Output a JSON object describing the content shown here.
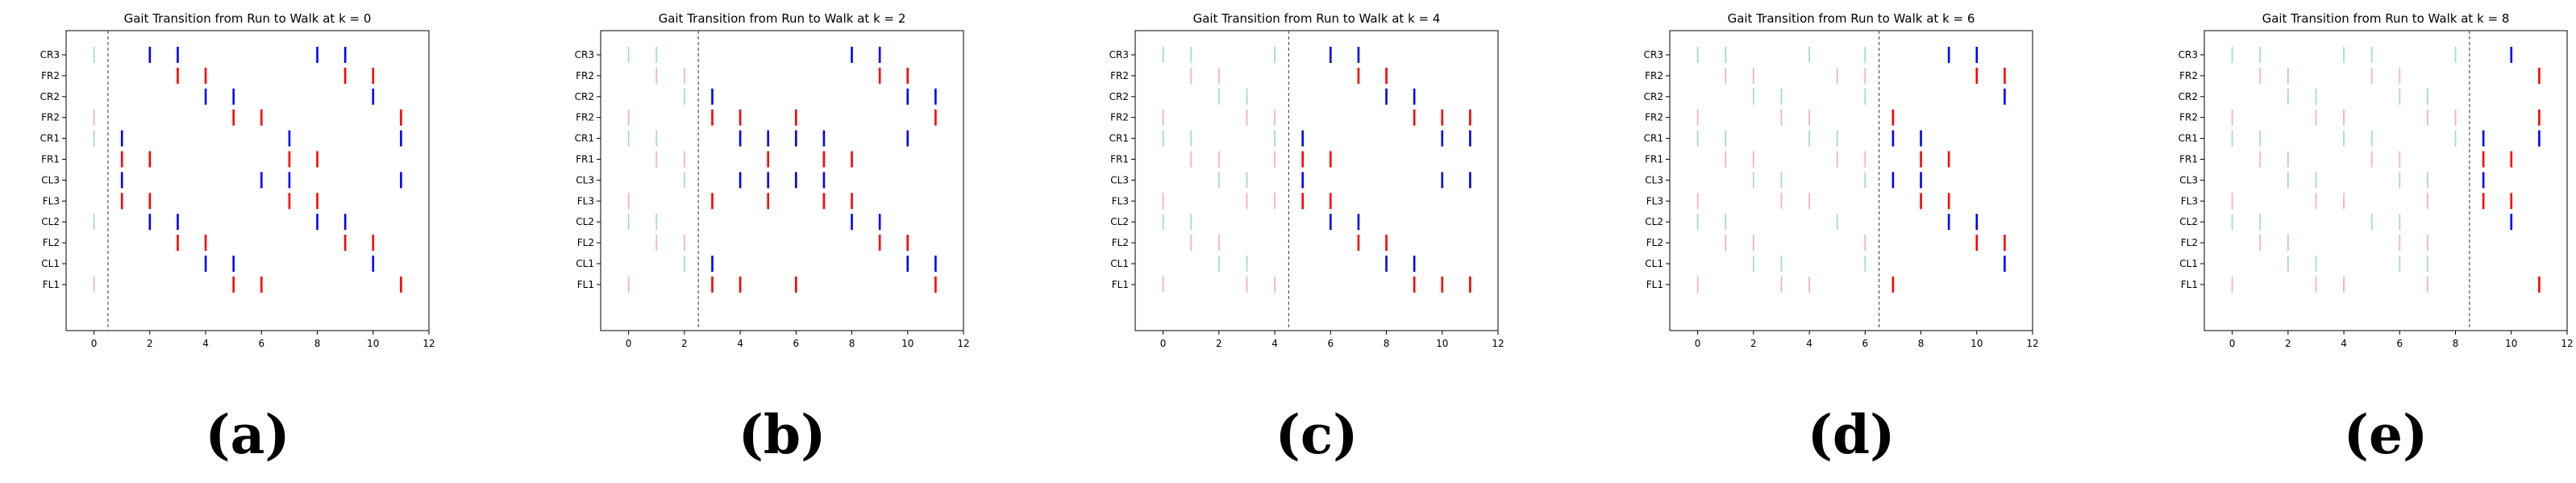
{
  "figure": {
    "rows": [
      "CR3",
      "FR2",
      "CR2",
      "FR2",
      "CR1",
      "FR1",
      "CL3",
      "FL3",
      "CL2",
      "FL2",
      "CL1",
      "FL1"
    ],
    "colors": {
      "C_active": "#0000ff",
      "C_past": "#a6d8d4",
      "F_active": "#ff0000",
      "F_past": "#f5b3b3",
      "boundary": "#555555"
    }
  },
  "chart_data": [
    {
      "type": "event",
      "title": "Gait Transition from Run to Walk at k = 0",
      "caption": "(a)",
      "boundary": 0.5,
      "xlim": [
        -1,
        12
      ],
      "xticks": [
        0,
        2,
        4,
        6,
        8,
        10,
        12
      ],
      "events": [
        [
          0,
          2,
          3,
          8,
          9
        ],
        [
          3,
          4,
          9,
          10
        ],
        [
          4,
          5,
          10
        ],
        [
          0,
          5,
          6,
          11
        ],
        [
          0,
          1,
          7,
          11
        ],
        [
          1,
          2,
          7,
          8
        ],
        [
          1,
          6,
          7,
          11
        ],
        [
          1,
          2,
          7,
          8
        ],
        [
          0,
          2,
          3,
          8,
          9
        ],
        [
          3,
          4,
          9,
          10
        ],
        [
          4,
          5,
          10
        ],
        [
          0,
          5,
          6,
          11
        ]
      ]
    },
    {
      "type": "event",
      "title": "Gait Transition from Run to Walk at k = 2",
      "caption": "(b)",
      "boundary": 2.5,
      "xlim": [
        -1,
        12
      ],
      "xticks": [
        0,
        2,
        4,
        6,
        8,
        10,
        12
      ],
      "events": [
        [
          0,
          1,
          8,
          9
        ],
        [
          1,
          2,
          9,
          10
        ],
        [
          2,
          3,
          10,
          11
        ],
        [
          0,
          3,
          4,
          6,
          11
        ],
        [
          0,
          1,
          4,
          5,
          6,
          7,
          10
        ],
        [
          1,
          2,
          5,
          7,
          8
        ],
        [
          2,
          4,
          5,
          6,
          7
        ],
        [
          0,
          3,
          5,
          7,
          8
        ],
        [
          0,
          1,
          8,
          9
        ],
        [
          1,
          2,
          9,
          10
        ],
        [
          2,
          3,
          10,
          11
        ],
        [
          0,
          3,
          4,
          6,
          11
        ]
      ]
    },
    {
      "type": "event",
      "title": "Gait Transition from Run to Walk at k = 4",
      "caption": "(c)",
      "boundary": 4.5,
      "xlim": [
        -1,
        12
      ],
      "xticks": [
        0,
        2,
        4,
        6,
        8,
        10,
        12
      ],
      "events": [
        [
          0,
          1,
          4,
          6,
          7
        ],
        [
          1,
          2,
          7,
          8
        ],
        [
          2,
          3,
          8,
          9
        ],
        [
          0,
          3,
          4,
          9,
          10,
          11
        ],
        [
          0,
          1,
          4,
          5,
          10,
          11
        ],
        [
          1,
          2,
          4,
          5,
          6
        ],
        [
          2,
          3,
          5,
          10,
          11
        ],
        [
          0,
          3,
          4,
          5,
          6
        ],
        [
          0,
          1,
          6,
          7
        ],
        [
          1,
          2,
          7,
          8
        ],
        [
          2,
          3,
          8,
          9
        ],
        [
          0,
          3,
          4,
          9,
          10,
          11
        ]
      ]
    },
    {
      "type": "event",
      "title": "Gait Transition from Run to Walk at k = 6",
      "caption": "(d)",
      "boundary": 6.5,
      "xlim": [
        -1,
        12
      ],
      "xticks": [
        0,
        2,
        4,
        6,
        8,
        10,
        12
      ],
      "events": [
        [
          0,
          1,
          4,
          6,
          9,
          10
        ],
        [
          1,
          2,
          5,
          6,
          10,
          11
        ],
        [
          2,
          3,
          6,
          11
        ],
        [
          0,
          3,
          4,
          7
        ],
        [
          0,
          1,
          4,
          5,
          7,
          8
        ],
        [
          1,
          2,
          5,
          6,
          8,
          9
        ],
        [
          2,
          3,
          6,
          7,
          8
        ],
        [
          0,
          3,
          4,
          8,
          9
        ],
        [
          0,
          1,
          5,
          9,
          10
        ],
        [
          1,
          2,
          6,
          10,
          11
        ],
        [
          2,
          3,
          6,
          11
        ],
        [
          0,
          3,
          4,
          7
        ]
      ]
    },
    {
      "type": "event",
      "title": "Gait Transition from Run to Walk at k = 8",
      "caption": "(e)",
      "boundary": 8.5,
      "xlim": [
        -1,
        12
      ],
      "xticks": [
        0,
        2,
        4,
        6,
        8,
        10,
        12
      ],
      "events": [
        [
          0,
          1,
          4,
          5,
          8,
          10
        ],
        [
          1,
          2,
          5,
          6,
          11
        ],
        [
          2,
          3,
          6,
          7
        ],
        [
          0,
          3,
          4,
          7,
          8,
          11
        ],
        [
          0,
          1,
          4,
          5,
          8,
          9,
          11
        ],
        [
          1,
          2,
          5,
          6,
          9,
          10
        ],
        [
          2,
          3,
          6,
          7,
          9
        ],
        [
          0,
          3,
          4,
          7,
          9,
          10
        ],
        [
          0,
          1,
          5,
          6,
          10
        ],
        [
          1,
          2,
          6,
          7
        ],
        [
          2,
          3,
          6,
          7
        ],
        [
          0,
          3,
          4,
          7,
          11
        ]
      ]
    }
  ]
}
